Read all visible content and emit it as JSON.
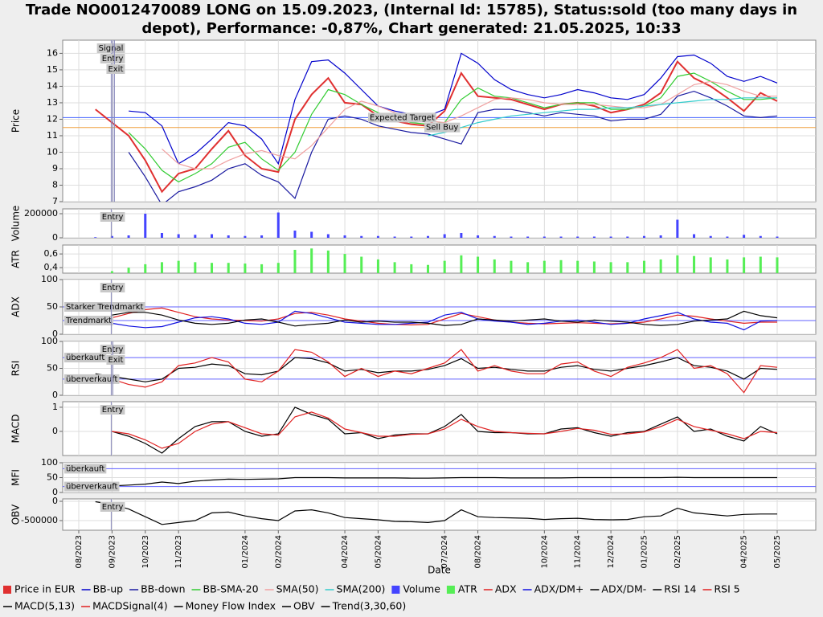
{
  "chart_data": [
    {
      "type": "line",
      "title": "Trade NO0012470089 LONG on 15.09.2023, (Internal Id: 15785), Status:sold (too many days in depot), Performance: -0,87%, Chart generated: 21.05.2025, 10:33",
      "ylabel": "Price",
      "ylim": [
        7,
        16.8
      ],
      "yticks": [
        7,
        8,
        9,
        10,
        11,
        12,
        13,
        14,
        15,
        16
      ],
      "grid": true,
      "series": [
        {
          "name": "Price in EUR",
          "color": "#e03030",
          "values": [
            null,
            12.6,
            11.8,
            11.0,
            9.5,
            7.6,
            8.7,
            9.0,
            10.2,
            11.3,
            9.8,
            9.0,
            8.8,
            12.0,
            13.5,
            14.5,
            13.0,
            12.9,
            12.2,
            11.9,
            11.7,
            11.6,
            12.5,
            14.8,
            13.4,
            13.3,
            13.2,
            12.9,
            12.6,
            12.9,
            13.0,
            12.8,
            12.4,
            12.6,
            12.9,
            13.6,
            15.5,
            14.5,
            14.0,
            13.3,
            12.5,
            13.6,
            13.1
          ]
        },
        {
          "name": "BB-up",
          "color": "#0000cc",
          "values": [
            null,
            null,
            null,
            12.5,
            12.4,
            11.6,
            9.3,
            9.9,
            10.8,
            11.8,
            11.6,
            10.8,
            9.3,
            13.2,
            15.5,
            15.6,
            14.8,
            13.8,
            12.8,
            12.5,
            12.3,
            12.2,
            12.6,
            16.0,
            15.4,
            14.4,
            13.8,
            13.5,
            13.3,
            13.5,
            13.8,
            13.6,
            13.3,
            13.2,
            13.5,
            14.5,
            15.8,
            15.9,
            15.4,
            14.6,
            14.3,
            14.6,
            14.2
          ]
        },
        {
          "name": "BB-down",
          "color": "#1a1aa0",
          "values": [
            null,
            null,
            null,
            10.0,
            8.5,
            6.8,
            7.6,
            7.9,
            8.3,
            9.0,
            9.3,
            8.6,
            8.2,
            7.2,
            10.0,
            12.0,
            12.2,
            12.0,
            11.6,
            11.4,
            11.2,
            11.1,
            10.8,
            10.5,
            12.4,
            12.6,
            12.6,
            12.4,
            12.2,
            12.4,
            12.3,
            12.2,
            11.9,
            12.0,
            12.0,
            12.3,
            13.4,
            13.7,
            13.3,
            12.8,
            12.2,
            12.1,
            12.2
          ]
        },
        {
          "name": "BB-SMA-20",
          "color": "#33cc33",
          "values": [
            null,
            null,
            null,
            11.2,
            10.2,
            8.9,
            8.2,
            8.7,
            9.3,
            10.3,
            10.6,
            9.6,
            8.9,
            10.0,
            12.3,
            13.8,
            13.5,
            12.9,
            12.4,
            12.0,
            11.8,
            11.7,
            11.8,
            13.2,
            13.9,
            13.4,
            13.3,
            13.0,
            12.7,
            12.9,
            13.0,
            13.0,
            12.6,
            12.6,
            12.8,
            13.3,
            14.6,
            14.8,
            14.3,
            13.7,
            13.2,
            13.2,
            13.3
          ]
        },
        {
          "name": "SMA(50)",
          "color": "#f0a0a0",
          "values": [
            null,
            null,
            null,
            null,
            null,
            10.2,
            9.3,
            9.0,
            9.0,
            9.5,
            9.9,
            10.1,
            9.8,
            9.6,
            10.4,
            11.5,
            12.6,
            13.1,
            12.8,
            12.4,
            12.1,
            11.9,
            11.8,
            12.2,
            12.7,
            13.2,
            13.3,
            13.2,
            13.0,
            12.9,
            12.9,
            12.9,
            12.8,
            12.7,
            12.7,
            12.9,
            13.5,
            14.1,
            14.3,
            14.1,
            13.7,
            13.4,
            13.4
          ]
        },
        {
          "name": "SMA(200)",
          "color": "#33cccc",
          "values": [
            null,
            null,
            null,
            null,
            null,
            null,
            null,
            null,
            null,
            null,
            null,
            null,
            null,
            null,
            null,
            null,
            null,
            null,
            null,
            null,
            null,
            11.0,
            11.2,
            11.5,
            11.8,
            12.0,
            12.2,
            12.3,
            12.4,
            12.5,
            12.6,
            12.6,
            12.7,
            12.7,
            12.8,
            12.9,
            13.0,
            13.1,
            13.2,
            13.2,
            13.3,
            13.3,
            13.3
          ]
        }
      ],
      "hlines": [
        {
          "label": "Expected Target",
          "value": 12.1,
          "color": "#4060ff"
        },
        {
          "label": "Sell Buy",
          "value": 11.5,
          "color": "#f0a040"
        }
      ],
      "events": [
        {
          "label": "Signal",
          "at": "09/2023"
        },
        {
          "label": "Entry",
          "at": "09/2023"
        },
        {
          "label": "Exit",
          "at": "09/2023"
        }
      ]
    },
    {
      "type": "bar",
      "ylabel": "Volume",
      "ylim": [
        0,
        240000
      ],
      "yticks": [
        0,
        200000
      ],
      "grid": true,
      "series": [
        {
          "name": "Volume",
          "color": "#4444ff",
          "values": [
            null,
            5000,
            15000,
            20000,
            200000,
            40000,
            30000,
            25000,
            30000,
            20000,
            15000,
            20000,
            210000,
            60000,
            50000,
            30000,
            20000,
            15000,
            15000,
            10000,
            10000,
            15000,
            30000,
            40000,
            20000,
            15000,
            10000,
            10000,
            10000,
            10000,
            10000,
            10000,
            10000,
            10000,
            15000,
            20000,
            150000,
            30000,
            15000,
            10000,
            25000,
            15000,
            10000
          ]
        }
      ],
      "events": [
        {
          "label": "Entry",
          "at": "09/2023"
        }
      ]
    },
    {
      "type": "bar",
      "ylabel": "ATR",
      "ylim": [
        0.32,
        0.73
      ],
      "yticks": [
        {
          "value": 0.4,
          "label": "0,4"
        },
        {
          "value": 0.6,
          "label": "0,6"
        }
      ],
      "grid": true,
      "series": [
        {
          "name": "ATR",
          "color": "#55ee55",
          "values": [
            null,
            null,
            0.35,
            0.4,
            0.45,
            0.48,
            0.5,
            0.48,
            0.47,
            0.47,
            0.46,
            0.45,
            0.47,
            0.66,
            0.68,
            0.65,
            0.6,
            0.56,
            0.52,
            0.48,
            0.45,
            0.44,
            0.5,
            0.58,
            0.56,
            0.52,
            0.5,
            0.48,
            0.5,
            0.51,
            0.5,
            0.49,
            0.48,
            0.48,
            0.5,
            0.52,
            0.58,
            0.57,
            0.55,
            0.52,
            0.55,
            0.56,
            0.55
          ]
        }
      ]
    },
    {
      "type": "line",
      "ylabel": "ADX",
      "ylim": [
        0,
        100
      ],
      "yticks": [
        0,
        50,
        100
      ],
      "grid": true,
      "series": [
        {
          "name": "ADX",
          "color": "#e02020",
          "values": [
            null,
            null,
            30,
            38,
            45,
            48,
            40,
            32,
            28,
            26,
            25,
            24,
            28,
            38,
            40,
            35,
            28,
            24,
            20,
            18,
            17,
            18,
            28,
            38,
            32,
            26,
            22,
            20,
            19,
            20,
            21,
            20,
            19,
            20,
            22,
            28,
            35,
            33,
            28,
            24,
            20,
            22,
            22
          ]
        },
        {
          "name": "ADX/DM+",
          "color": "#1010e0",
          "values": [
            null,
            null,
            20,
            15,
            12,
            14,
            22,
            30,
            32,
            28,
            20,
            18,
            22,
            42,
            38,
            30,
            22,
            20,
            18,
            18,
            20,
            22,
            35,
            40,
            28,
            24,
            22,
            18,
            20,
            24,
            26,
            22,
            18,
            20,
            28,
            34,
            40,
            28,
            22,
            20,
            8,
            24,
            25
          ]
        },
        {
          "name": "ADX/DM-",
          "color": "#000000",
          "values": [
            null,
            null,
            35,
            40,
            40,
            35,
            26,
            20,
            18,
            20,
            26,
            28,
            22,
            15,
            18,
            20,
            26,
            22,
            24,
            22,
            22,
            20,
            16,
            18,
            28,
            26,
            24,
            26,
            28,
            24,
            22,
            26,
            24,
            22,
            18,
            16,
            18,
            24,
            26,
            28,
            42,
            34,
            30
          ]
        }
      ],
      "hlines": [
        {
          "label": "Starker Trendmarkt",
          "value": 50,
          "color": "#6060ff"
        },
        {
          "label": "Trendmarkt",
          "value": 25,
          "color": "#6060ff"
        }
      ],
      "events": [
        {
          "label": "Entry",
          "at": "09/2023"
        }
      ]
    },
    {
      "type": "line",
      "ylabel": "RSI",
      "ylim": [
        0,
        100
      ],
      "yticks": [
        0,
        50,
        100
      ],
      "grid": true,
      "series": [
        {
          "name": "RSI 14",
          "color": "#000000",
          "values": [
            null,
            40,
            35,
            30,
            25,
            30,
            50,
            52,
            58,
            55,
            40,
            38,
            45,
            70,
            68,
            60,
            45,
            48,
            42,
            45,
            45,
            48,
            55,
            68,
            50,
            52,
            48,
            45,
            45,
            52,
            55,
            48,
            45,
            50,
            55,
            62,
            70,
            55,
            52,
            45,
            30,
            50,
            48
          ]
        },
        {
          "name": "RSI 5",
          "color": "#e02020",
          "values": [
            null,
            35,
            30,
            20,
            15,
            25,
            55,
            60,
            70,
            62,
            30,
            25,
            45,
            85,
            80,
            62,
            35,
            50,
            35,
            45,
            40,
            50,
            60,
            85,
            45,
            55,
            45,
            40,
            40,
            58,
            62,
            45,
            35,
            52,
            60,
            70,
            85,
            50,
            55,
            40,
            5,
            55,
            52
          ]
        }
      ],
      "hlines": [
        {
          "label": "überkauft",
          "value": 70,
          "color": "#6060ff"
        },
        {
          "label": "überverkauft",
          "value": 30,
          "color": "#6060ff"
        }
      ],
      "events": [
        {
          "label": "Entry",
          "at": "09/2023"
        },
        {
          "label": "Exit",
          "at": "09/2023"
        }
      ]
    },
    {
      "type": "line",
      "ylabel": "MACD",
      "ylim": [
        -1.0,
        1.23
      ],
      "yticks": [
        0,
        1
      ],
      "grid": true,
      "series": [
        {
          "name": "MACD(5,13)",
          "color": "#000000",
          "values": [
            null,
            null,
            0.0,
            -0.2,
            -0.5,
            -0.9,
            -0.3,
            0.2,
            0.4,
            0.4,
            0.0,
            -0.2,
            -0.1,
            1.0,
            0.7,
            0.5,
            -0.1,
            -0.05,
            -0.3,
            -0.15,
            -0.1,
            -0.1,
            0.2,
            0.7,
            0.0,
            -0.05,
            -0.05,
            -0.1,
            -0.1,
            0.1,
            0.15,
            -0.05,
            -0.2,
            -0.05,
            0.0,
            0.3,
            0.6,
            0.0,
            0.1,
            -0.2,
            -0.4,
            0.2,
            -0.1
          ]
        },
        {
          "name": "MACDSignal(4)",
          "color": "#e02020",
          "values": [
            null,
            null,
            0.0,
            -0.1,
            -0.35,
            -0.7,
            -0.5,
            0.0,
            0.3,
            0.4,
            0.15,
            -0.1,
            -0.15,
            0.6,
            0.8,
            0.55,
            0.1,
            -0.05,
            -0.2,
            -0.2,
            -0.12,
            -0.1,
            0.1,
            0.5,
            0.2,
            0.0,
            -0.05,
            -0.08,
            -0.1,
            0.0,
            0.12,
            0.05,
            -0.12,
            -0.1,
            -0.02,
            0.2,
            0.5,
            0.2,
            0.05,
            -0.1,
            -0.3,
            0.0,
            -0.05
          ]
        }
      ],
      "events": [
        {
          "label": "Entry",
          "at": "09/2023"
        }
      ]
    },
    {
      "type": "line",
      "ylabel": "MFI",
      "ylim": [
        0,
        100
      ],
      "yticks": [
        0,
        50,
        100
      ],
      "grid": true,
      "series": [
        {
          "name": "Money Flow Index",
          "color": "#000000",
          "values": [
            null,
            25,
            22,
            25,
            28,
            35,
            30,
            38,
            42,
            45,
            44,
            45,
            46,
            50,
            50,
            50,
            49,
            49,
            49,
            49,
            48,
            48,
            49,
            50,
            50,
            50,
            49,
            49,
            49,
            49,
            50,
            50,
            50,
            50,
            50,
            50,
            51,
            50,
            50,
            50,
            50,
            50,
            50
          ]
        }
      ],
      "hlines": [
        {
          "label": "überkauft",
          "value": 80,
          "color": "#6060ff"
        },
        {
          "label": "überverkauft",
          "value": 20,
          "color": "#6060ff"
        }
      ]
    },
    {
      "type": "line",
      "ylabel": "OBV",
      "xlabel": "Date",
      "ylim": [
        -750000,
        62500
      ],
      "yticks": [
        -500000,
        0
      ],
      "grid": true,
      "categories": [
        "08/2023",
        null,
        "09/2023",
        null,
        "10/2023",
        null,
        "11/2023",
        null,
        null,
        null,
        "01/2024",
        null,
        "02/2024",
        null,
        null,
        null,
        "04/2024",
        null,
        "05/2024",
        null,
        null,
        null,
        "07/2024",
        null,
        "08/2024",
        null,
        null,
        null,
        "10/2024",
        null,
        "11/2024",
        null,
        "12/2024",
        null,
        "01/2025",
        null,
        "02/2025",
        null,
        null,
        null,
        "04/2025",
        null,
        "05/2025"
      ],
      "series": [
        {
          "name": "OBV",
          "color": "#000000",
          "values": [
            null,
            -10000,
            -80000,
            -200000,
            -400000,
            -600000,
            -550000,
            -500000,
            -300000,
            -280000,
            -380000,
            -450000,
            -500000,
            -250000,
            -220000,
            -300000,
            -420000,
            -450000,
            -480000,
            -520000,
            -530000,
            -550000,
            -500000,
            -220000,
            -400000,
            -420000,
            -430000,
            -440000,
            -470000,
            -450000,
            -440000,
            -470000,
            -480000,
            -470000,
            -400000,
            -380000,
            -180000,
            -300000,
            -340000,
            -380000,
            -340000,
            -330000,
            -330000
          ]
        },
        {
          "name": "Trend(3,30,60)",
          "color": "#000000"
        }
      ],
      "events": [
        {
          "label": "Entry",
          "at": "09/2023"
        }
      ]
    }
  ]
}
